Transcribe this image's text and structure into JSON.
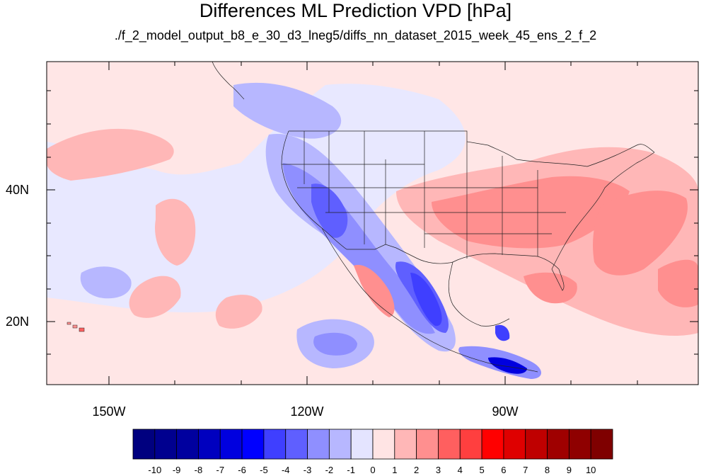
{
  "title": "Differences ML Prediction VPD [hPa]",
  "subtitle": "./f_2_model_output_b8_e_30_d3_lneg5/diffs_nn_dataset_2015_week_45_ens_2_f_2",
  "axes": {
    "y_ticks": [
      {
        "label": "40N"
      },
      {
        "label": "20N"
      }
    ],
    "x_ticks": [
      {
        "label": "150W"
      },
      {
        "label": "120W"
      },
      {
        "label": "90W"
      }
    ]
  },
  "colorbar": {
    "labels": [
      "-10",
      "-9",
      "-8",
      "-7",
      "-6",
      "-5",
      "-4",
      "-3",
      "-2",
      "-1",
      "0",
      "1",
      "2",
      "3",
      "4",
      "5",
      "6",
      "7",
      "8",
      "9",
      "10"
    ],
    "colors": [
      "#00007f",
      "#00008f",
      "#00009f",
      "#0000bf",
      "#0000df",
      "#0000ff",
      "#3f3fff",
      "#5f5fff",
      "#8f8fff",
      "#b7b7ff",
      "#e4e4ff",
      "#ffe4e4",
      "#ffb7b7",
      "#ff8f8f",
      "#ff5f5f",
      "#ff3f3f",
      "#ff0000",
      "#df0000",
      "#bf0000",
      "#9f0000",
      "#8f0000",
      "#7f0000"
    ]
  },
  "map_colors": {
    "background": "#ffe6e6",
    "neutral_blue": "#e8e8ff",
    "light_red": "#ffb7b7",
    "mid_red": "#ff8f8f",
    "strong_red": "#ff5f5f",
    "light_blue": "#b7b7ff",
    "mid_blue": "#8f8fff",
    "strong_blue": "#5f5fff",
    "deep_blue": "#3f3fff",
    "darkest_blue": "#0000df"
  }
}
